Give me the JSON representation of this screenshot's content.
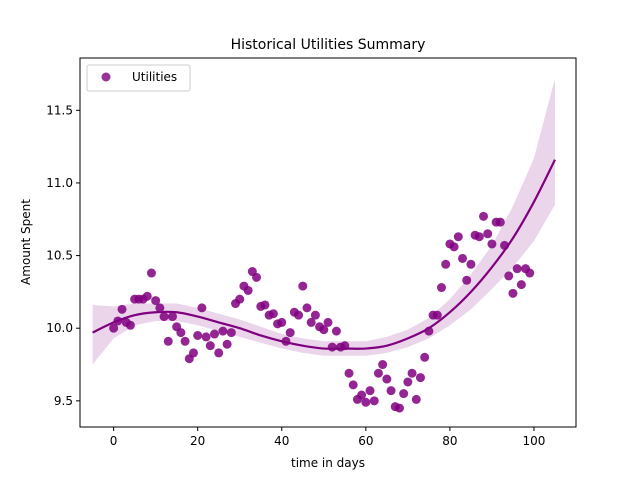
{
  "chart_data": {
    "type": "scatter",
    "title": "Historical Utilities Summary",
    "xlabel": "time in days",
    "ylabel": "Amount Spent",
    "xlim": [
      -8,
      110
    ],
    "ylim": [
      9.32,
      11.86
    ],
    "xticks": [
      0,
      20,
      40,
      60,
      80,
      100
    ],
    "yticks": [
      9.5,
      10.0,
      10.5,
      11.0,
      11.5
    ],
    "xtick_labels": [
      "0",
      "20",
      "40",
      "60",
      "80",
      "100"
    ],
    "ytick_labels": [
      "9.5",
      "10.0",
      "10.5",
      "11.0",
      "11.5"
    ],
    "grid": false,
    "legend_position": "top-left",
    "series": [
      {
        "name": "Utilities",
        "color": "#800080",
        "x": [
          0,
          1,
          2,
          3,
          4,
          5,
          6,
          7,
          8,
          9,
          10,
          11,
          12,
          13,
          14,
          15,
          16,
          17,
          18,
          19,
          20,
          21,
          22,
          23,
          24,
          25,
          26,
          27,
          28,
          29,
          30,
          31,
          32,
          33,
          34,
          35,
          36,
          37,
          38,
          39,
          40,
          41,
          42,
          43,
          44,
          45,
          46,
          47,
          48,
          49,
          50,
          51,
          52,
          53,
          54,
          55,
          56,
          57,
          58,
          59,
          60,
          61,
          62,
          63,
          64,
          65,
          66,
          67,
          68,
          69,
          70,
          71,
          72,
          73,
          74,
          75,
          76,
          77,
          78,
          79,
          80,
          81,
          82,
          83,
          84,
          85,
          86,
          87,
          88,
          89,
          90,
          91,
          92,
          93,
          94,
          95,
          96,
          97,
          98,
          99
        ],
        "y": [
          10.0,
          10.05,
          10.13,
          10.04,
          10.02,
          10.2,
          10.2,
          10.2,
          10.22,
          10.38,
          10.19,
          10.14,
          10.08,
          9.91,
          10.08,
          10.01,
          9.97,
          9.91,
          9.79,
          9.83,
          9.95,
          10.14,
          9.94,
          9.88,
          9.96,
          9.83,
          9.98,
          9.89,
          9.97,
          10.17,
          10.2,
          10.29,
          10.26,
          10.39,
          10.35,
          10.15,
          10.16,
          10.09,
          10.1,
          10.03,
          10.04,
          9.91,
          9.97,
          10.11,
          10.09,
          10.29,
          10.14,
          10.04,
          10.09,
          10.01,
          9.99,
          10.04,
          9.87,
          9.98,
          9.87,
          9.88,
          9.69,
          9.61,
          9.51,
          9.54,
          9.49,
          9.57,
          9.5,
          9.69,
          9.75,
          9.65,
          9.57,
          9.46,
          9.45,
          9.55,
          9.63,
          9.69,
          9.51,
          9.66,
          9.8,
          9.98,
          10.09,
          10.09,
          10.28,
          10.44,
          10.58,
          10.56,
          10.63,
          10.48,
          10.33,
          10.44,
          10.64,
          10.63,
          10.77,
          10.65,
          10.58,
          10.73,
          10.73,
          10.57,
          10.36,
          10.24,
          10.41,
          10.3,
          10.41,
          10.38
        ]
      }
    ],
    "fit": {
      "color": "#800080",
      "band_color": "#d9b3d9",
      "x": [
        -5,
        0,
        5,
        10,
        15,
        20,
        25,
        30,
        35,
        40,
        45,
        50,
        55,
        60,
        65,
        70,
        75,
        80,
        85,
        90,
        95,
        100,
        105
      ],
      "y": [
        9.97,
        10.04,
        10.09,
        10.11,
        10.11,
        10.08,
        10.04,
        10.0,
        9.95,
        9.91,
        9.88,
        9.86,
        9.86,
        9.86,
        9.88,
        9.93,
        10.0,
        10.11,
        10.25,
        10.42,
        10.62,
        10.87,
        11.16
      ],
      "lower": [
        9.75,
        9.93,
        10.02,
        10.05,
        10.05,
        10.02,
        9.98,
        9.94,
        9.9,
        9.86,
        9.83,
        9.81,
        9.81,
        9.81,
        9.83,
        9.87,
        9.93,
        10.02,
        10.13,
        10.27,
        10.42,
        10.6,
        10.85
      ],
      "upper": [
        10.16,
        10.15,
        10.17,
        10.17,
        10.17,
        10.14,
        10.1,
        10.06,
        10.01,
        9.96,
        9.93,
        9.91,
        9.91,
        9.91,
        9.94,
        9.99,
        10.07,
        10.2,
        10.37,
        10.57,
        10.84,
        11.17,
        11.72
      ]
    }
  }
}
